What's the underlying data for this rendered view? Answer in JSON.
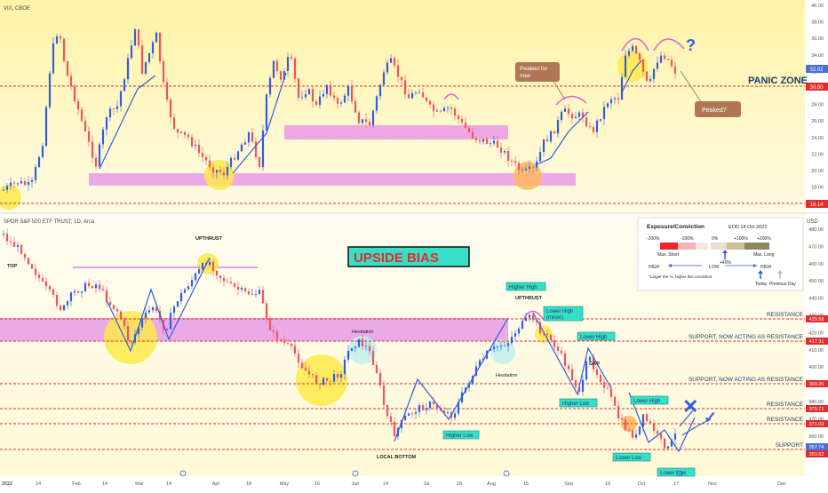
{
  "colors": {
    "panel_top": "#fff5b8",
    "panel_bottom": "#fffde8",
    "up": "#2f5fe0",
    "down": "#f0525e",
    "level_line": "#e02c2c",
    "pink_zone": "#e79ae8",
    "yellow_mark": "#ffe94a",
    "orange_mark": "#ffb65c",
    "teal_box": "#36e0c6",
    "brown_box": "#b07656",
    "navy_text": "#1e3a6b",
    "scale_bg": "#ffffff"
  },
  "header": {
    "vix_symbol": "VIX, CBOE",
    "spy_symbol": "SPDR S&P 500 ETF TRUST, 1D, Arca",
    "usd_label": "USD"
  },
  "vix_panel": {
    "axis_ticks": [
      "40.00",
      "38.00",
      "36.00",
      "34.00",
      "32.00",
      "30.00",
      "28.00",
      "26.00",
      "24.00",
      "22.00",
      "20.00",
      "18.00",
      "16.00"
    ],
    "price_tag": "32.02",
    "level_tag": "30.00",
    "bottom_tag": "16.14",
    "panic_zone_label": "PANIC ZONE",
    "callout_peaked_for_now": "Peaked for now",
    "callout_peaked": "Peaked?",
    "question_mark": "?"
  },
  "spy_panel": {
    "axis_ticks": [
      "480.00",
      "470.00",
      "460.00",
      "450.00",
      "440.00",
      "430.00",
      "420.00",
      "410.00",
      "400.00",
      "390.00",
      "380.00",
      "370.00",
      "360.00",
      "350.00"
    ],
    "level_tags": [
      "429.58",
      "417.31",
      "393.25",
      "379.71",
      "371.03"
    ],
    "price_tags": [
      "357.74",
      "353.62"
    ],
    "bias_label": "UPSIDE BIAS",
    "annotations": {
      "top": "TOP",
      "upthrust_1": "UPTHRUST",
      "upthrust_2": "UPTHRUST",
      "hesitation_1": "Hesitation",
      "hesitation_2": "Hesitation",
      "local_bottom": "LOCAL BOTTOM",
      "higher_low_1": "Higher Low",
      "higher_high": "Higher High",
      "lower_high_minor": "Lower High (minor)",
      "lower_high_1": "Lower High",
      "higher_low_2": "Higher Low",
      "lower_high_2": "Lower High",
      "lower_low_1": "Lower Low",
      "lower_low_2": "Lower Low",
      "gap": "GAP",
      "cross_mark": "✕",
      "check_mark": "✓"
    },
    "level_labels": {
      "resistance_1": "RESISTANCE",
      "support_acting_resistance_1": "SUPPORT, NOW ACTING AS RESISTANCE",
      "support_acting_resistance_2": "SUPPORT, NOW ACTING AS RESISTANCE",
      "resistance_2": "RESISTANCE",
      "resistance_3": "RESISTANCE",
      "support": "SUPPORT"
    }
  },
  "exposure_card": {
    "title": "Exposure/Conviction",
    "date": "EOD 14 Oct 2022",
    "scale_labels": [
      "-200%",
      "-100%",
      "0%",
      "+100%",
      "+200%"
    ],
    "max_short": "Max. Short",
    "max_long": "Max. Long",
    "marker_value": "+40%",
    "high_left": "HIGH",
    "low_mid": "LOW",
    "high_right": "HIGH",
    "footnote": "*Larger the %, higher the conviction",
    "today": "Today",
    "previous_day": "Previous Day"
  },
  "time_axis": {
    "labels": [
      "2022",
      "14",
      "Feb",
      "14",
      "Mar",
      "14",
      "Apr",
      "18",
      "May",
      "16",
      "Jun",
      "14",
      "Jul",
      "18",
      "Aug",
      "15",
      "Sep",
      "19",
      "Oct",
      "17",
      "Nov",
      "Dec"
    ]
  }
}
